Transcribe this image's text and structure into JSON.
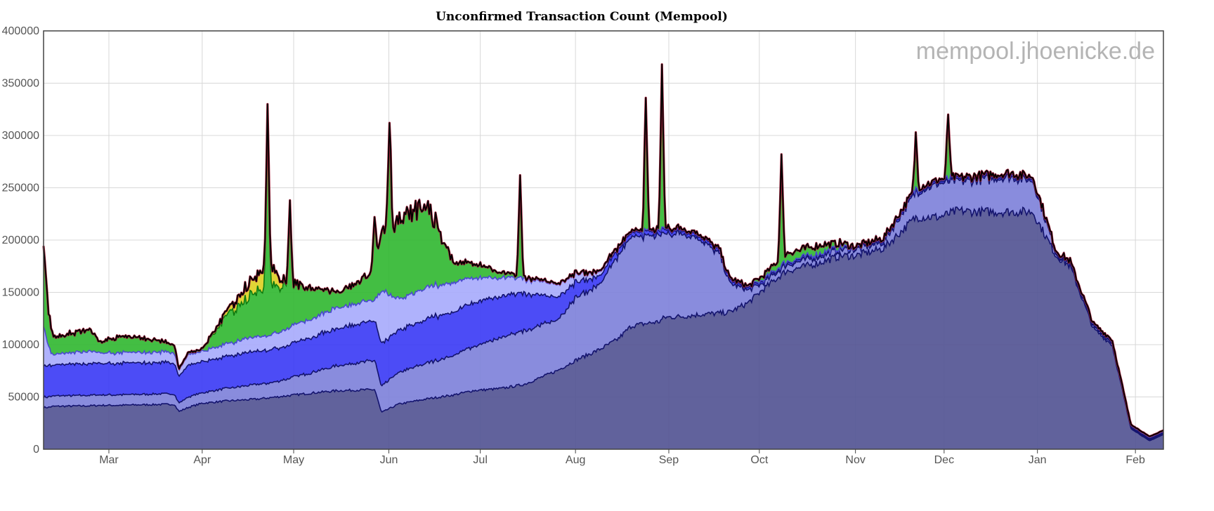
{
  "chart_data": {
    "type": "area",
    "title": "Unconfirmed Transaction Count (Mempool)",
    "watermark": "mempool.jhoenicke.de",
    "xlabel": "",
    "ylabel": "",
    "ylim": [
      0,
      400000
    ],
    "yticks": [
      0,
      50000,
      100000,
      150000,
      200000,
      250000,
      300000,
      350000,
      400000
    ],
    "x_range": [
      0.0,
      12.0
    ],
    "xtick_positions": [
      0.7,
      1.7,
      2.68,
      3.7,
      4.68,
      5.7,
      6.7,
      7.67,
      8.7,
      9.65,
      10.65,
      11.7
    ],
    "xtick_labels": [
      "Mar",
      "Apr",
      "May",
      "Jun",
      "Jul",
      "Aug",
      "Sep",
      "Oct",
      "Nov",
      "Dec",
      "Jan",
      "Feb"
    ],
    "grid": true,
    "stacked": true,
    "x": [
      0.0,
      0.05,
      0.1,
      0.5,
      0.6,
      0.8,
      1.05,
      1.4,
      1.45,
      1.55,
      1.7,
      1.95,
      2.3,
      2.4,
      2.6,
      2.9,
      3.15,
      3.55,
      3.62,
      3.8,
      4.1,
      4.4,
      4.6,
      4.9,
      5.15,
      5.5,
      5.7,
      5.95,
      6.15,
      6.3,
      6.6,
      6.65,
      6.85,
      7.05,
      7.25,
      7.35,
      7.55,
      7.7,
      7.95,
      8.3,
      8.55,
      8.7,
      9.0,
      9.35,
      9.6,
      9.8,
      10.0,
      10.35,
      10.6,
      10.85,
      11.0,
      11.25,
      11.45,
      11.65,
      11.85,
      12.0
    ],
    "series": [
      {
        "color": "#545594",
        "values": [
          40000,
          40000,
          41000,
          41500,
          42000,
          42000,
          42500,
          43000,
          36000,
          40000,
          44000,
          46000,
          48000,
          49000,
          51000,
          54000,
          56000,
          57000,
          35000,
          43000,
          48000,
          52000,
          56000,
          58000,
          62000,
          75000,
          85000,
          95000,
          105000,
          118000,
          122000,
          126000,
          127000,
          129000,
          130000,
          131000,
          140000,
          152000,
          170000,
          178000,
          185000,
          185000,
          192000,
          222000,
          222000,
          228000,
          227000,
          227000,
          227000,
          185000,
          175000,
          115000,
          100000,
          20000,
          8000,
          14000
        ]
      },
      {
        "color": "#7f82da",
        "values": [
          10000,
          10000,
          10000,
          10000,
          10000,
          10000,
          10000,
          10000,
          8000,
          10000,
          10000,
          12000,
          14000,
          14000,
          16000,
          20000,
          24000,
          28000,
          25000,
          30000,
          34000,
          38000,
          42000,
          48000,
          52000,
          48000,
          60000,
          62000,
          78000,
          85000,
          82000,
          80000,
          80000,
          72000,
          55000,
          28000,
          12000,
          6000,
          6000,
          6000,
          6000,
          6000,
          6000,
          24000,
          32000,
          28000,
          30000,
          33000,
          30000,
          2000,
          2000,
          2000,
          2000,
          1000,
          1000,
          1000
        ]
      },
      {
        "color": "#3d3df5",
        "values": [
          30000,
          30000,
          30000,
          30000,
          30000,
          30000,
          30000,
          30000,
          26000,
          30000,
          30000,
          30000,
          32000,
          32000,
          32000,
          34000,
          36000,
          38000,
          40000,
          40000,
          42000,
          42000,
          42000,
          40000,
          36000,
          22000,
          15000,
          8000,
          6000,
          4000,
          4000,
          4000,
          3000,
          3000,
          3000,
          3000,
          2000,
          2000,
          2000,
          2000,
          1000,
          1000,
          2000,
          2000,
          2000,
          2000,
          2000,
          2000,
          2000,
          1000,
          1000,
          1000,
          1000,
          1000,
          1000,
          1000
        ]
      },
      {
        "color": "#a8abfc",
        "values": [
          38000,
          18000,
          10000,
          12000,
          10000,
          10000,
          10000,
          10000,
          6000,
          10000,
          10000,
          12000,
          14000,
          14000,
          16000,
          18000,
          20000,
          20000,
          50000,
          30000,
          30000,
          28000,
          24000,
          18000,
          14000,
          12000,
          8000,
          4000,
          2000,
          1000,
          1000,
          1000,
          1000,
          1000,
          1000,
          1000,
          1000,
          1000,
          1000,
          1000,
          1000,
          1000,
          1000,
          1000,
          1000,
          1000,
          1000,
          1000,
          1000,
          1000,
          1000,
          1000,
          1000,
          1000,
          1000,
          1000
        ]
      },
      {
        "color": "#33b933",
        "values": [
          80000,
          34000,
          17000,
          20000,
          10000,
          16000,
          14000,
          8000,
          1000,
          2000,
          2000,
          26000,
          44000,
          48000,
          42000,
          28000,
          14000,
          28000,
          60000,
          74000,
          80000,
          18000,
          14000,
          5000,
          2000,
          1000,
          1000,
          1000,
          1000,
          1000,
          1000,
          1000,
          1000,
          1000,
          1000,
          1000,
          1000,
          4000,
          8000,
          8000,
          4000,
          1000,
          1000,
          1000,
          1000,
          1000,
          1000,
          1000,
          1000,
          1000,
          1000,
          1000,
          1000,
          1000,
          1000,
          1000
        ]
      },
      {
        "color": "#ddd025",
        "values": [
          0,
          0,
          0,
          0,
          0,
          0,
          0,
          0,
          0,
          0,
          0,
          4000,
          16000,
          22000,
          2000,
          0,
          0,
          0,
          0,
          0,
          0,
          0,
          0,
          0,
          0,
          0,
          0,
          0,
          0,
          0,
          0,
          0,
          0,
          0,
          0,
          0,
          0,
          0,
          0,
          0,
          0,
          0,
          0,
          0,
          0,
          0,
          0,
          0,
          0,
          0,
          0,
          0,
          0,
          0,
          0,
          0
        ]
      }
    ],
    "total_spikes": [
      {
        "x": 2.4,
        "y": 330000
      },
      {
        "x": 2.64,
        "y": 238000
      },
      {
        "x": 3.55,
        "y": 222000
      },
      {
        "x": 3.7,
        "y": 312000
      },
      {
        "x": 5.1,
        "y": 262000
      },
      {
        "x": 6.45,
        "y": 336000
      },
      {
        "x": 6.62,
        "y": 368000
      },
      {
        "x": 7.9,
        "y": 282000
      },
      {
        "x": 9.35,
        "y": 303000
      },
      {
        "x": 9.7,
        "y": 320000
      }
    ]
  }
}
